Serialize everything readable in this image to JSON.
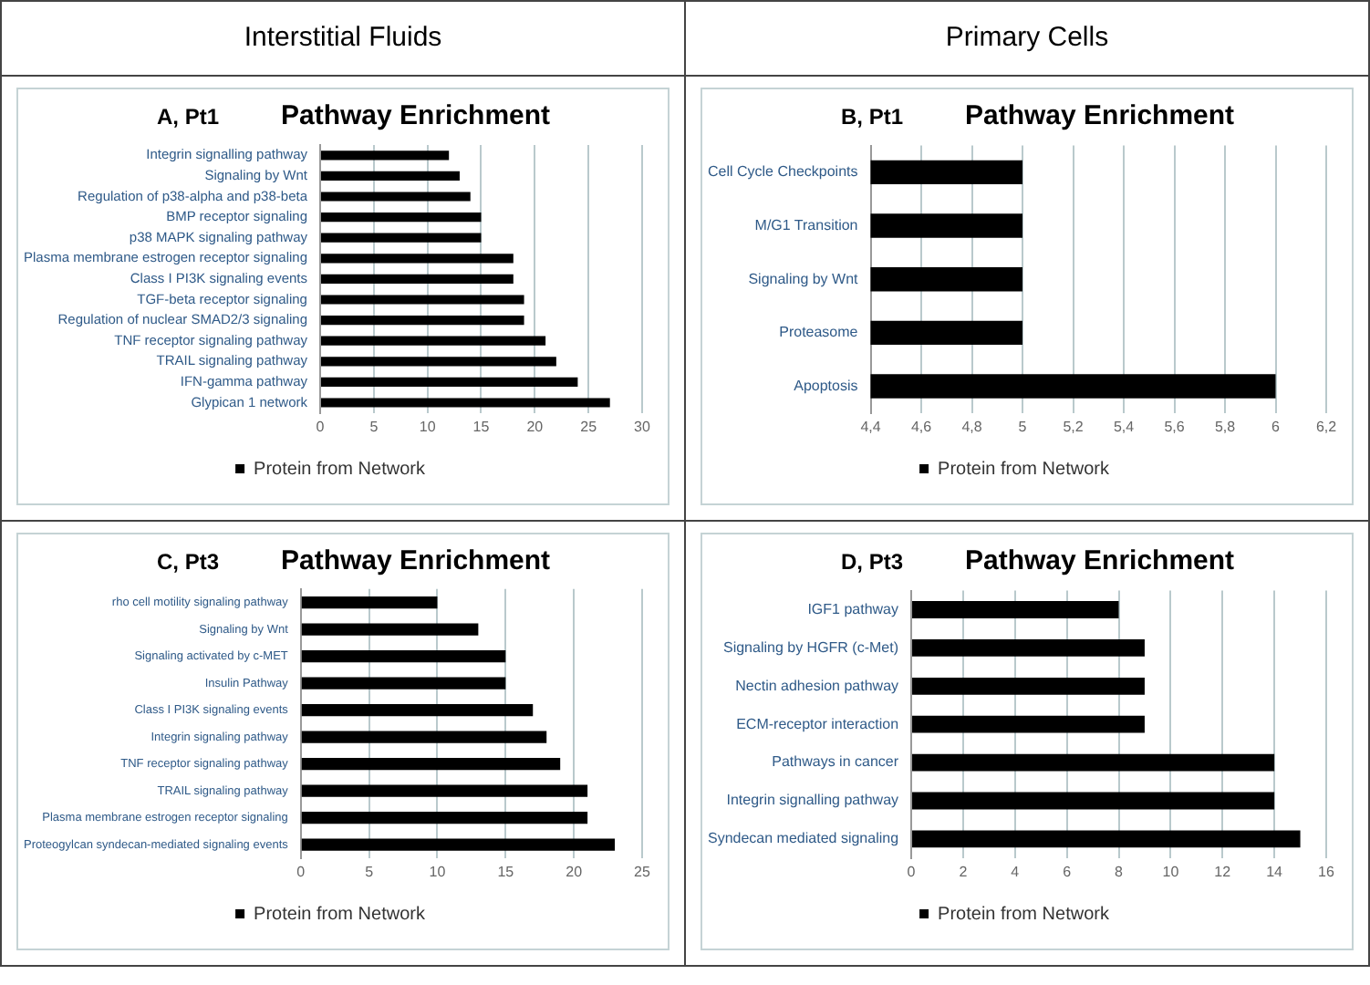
{
  "chart_data": [
    {
      "type": "bar",
      "orientation": "horizontal",
      "title": "Pathway Enrichment",
      "subtitle": "A, Pt1",
      "annotations": [
        "Interstitial Fluids"
      ],
      "categories": [
        "Integrin signalling pathway",
        "Signaling by Wnt",
        "Regulation of p38-alpha and p38-beta",
        "BMP receptor signaling",
        "p38 MAPK signaling pathway",
        "Plasma membrane estrogen receptor signaling",
        "Class I PI3K signaling events",
        "TGF-beta receptor signaling",
        "Regulation of nuclear SMAD2/3 signaling",
        "TNF receptor signaling pathway",
        "TRAIL signaling pathway",
        "IFN-gamma pathway",
        "Glypican 1 network"
      ],
      "series": [
        {
          "name": "Protein from Network",
          "color": "#000000",
          "values": [
            12,
            13,
            14,
            15,
            15,
            18,
            18,
            19,
            19,
            21,
            22,
            24,
            27
          ]
        }
      ],
      "xlim": [
        0,
        30
      ],
      "xticks": [
        0,
        5,
        10,
        15,
        20,
        25,
        30
      ],
      "grid": "x",
      "legend": "bottom"
    },
    {
      "type": "bar",
      "orientation": "horizontal",
      "title": "Pathway Enrichment",
      "subtitle": "B, Pt1",
      "annotations": [
        "Primary Cells"
      ],
      "categories": [
        "Cell Cycle Checkpoints",
        "M/G1 Transition",
        "Signaling by Wnt",
        "Proteasome",
        "Apoptosis"
      ],
      "series": [
        {
          "name": "Protein from Network",
          "color": "#000000",
          "values": [
            5,
            5,
            5,
            5,
            6
          ]
        }
      ],
      "xlim": [
        4.4,
        6.2
      ],
      "xticks": [
        {
          "value": 4.4,
          "label": "4,4"
        },
        {
          "value": 4.6,
          "label": "4,6"
        },
        {
          "value": 4.8,
          "label": "4,8"
        },
        5,
        {
          "value": 5.2,
          "label": "5,2"
        },
        {
          "value": 5.4,
          "label": "5,4"
        },
        {
          "value": 5.6,
          "label": "5,6"
        },
        {
          "value": 5.8,
          "label": "5,8"
        },
        6,
        {
          "value": 6.2,
          "label": "6,2"
        }
      ],
      "grid": "x",
      "legend": "bottom"
    },
    {
      "type": "bar",
      "orientation": "horizontal",
      "title": "Pathway Enrichment",
      "subtitle": "C, Pt3",
      "categories": [
        "rho cell motility signaling pathway",
        "Signaling by Wnt",
        "Signaling activated by c-MET",
        "Insulin Pathway",
        "Class I PI3K signaling events",
        "Integrin signaling pathway",
        "TNF receptor signaling pathway",
        "TRAIL signaling pathway",
        "Plasma membrane estrogen receptor signaling",
        "Proteogylcan syndecan-mediated signaling events"
      ],
      "series": [
        {
          "name": "Protein from Network",
          "color": "#000000",
          "values": [
            10,
            13,
            15,
            15,
            17,
            18,
            19,
            21,
            21,
            23
          ]
        }
      ],
      "xlim": [
        0,
        25
      ],
      "xticks": [
        0,
        5,
        10,
        15,
        20,
        25
      ],
      "grid": "x",
      "legend": "bottom"
    },
    {
      "type": "bar",
      "orientation": "horizontal",
      "title": "Pathway Enrichment",
      "subtitle": "D, Pt3",
      "categories": [
        "IGF1 pathway",
        "Signaling by HGFR (c-Met)",
        "Nectin adhesion pathway",
        "ECM-receptor interaction",
        "Pathways in cancer",
        "Integrin signalling pathway",
        "Syndecan mediated signaling"
      ],
      "series": [
        {
          "name": "Protein from Network",
          "color": "#000000",
          "values": [
            8,
            9,
            9,
            9,
            14,
            14,
            15
          ]
        }
      ],
      "xlim": [
        0,
        16
      ],
      "xticks": [
        0,
        2,
        4,
        6,
        8,
        10,
        12,
        14,
        16
      ],
      "grid": "x",
      "legend": "bottom"
    }
  ]
}
